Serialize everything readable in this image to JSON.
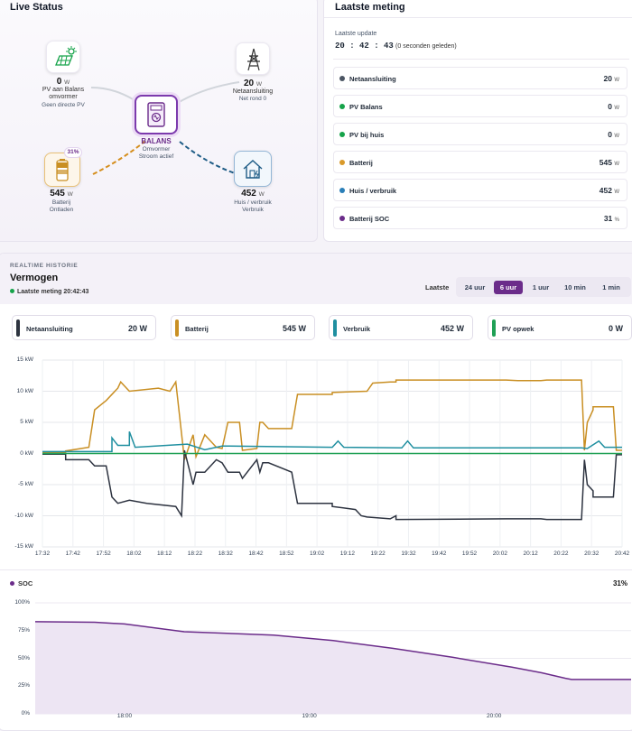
{
  "live": {
    "title": "Live Status",
    "pv": {
      "value": "0",
      "unit": "W",
      "label1": "PV aan Balans",
      "label2": "omvormer",
      "label3": "Geen directe PV"
    },
    "grid": {
      "value": "20",
      "unit": "W",
      "label1": "Netaansluiting",
      "label2": "Net rond 0"
    },
    "center": {
      "title": "BALANS",
      "label1": "Omvormer",
      "label2": "Stroom actief"
    },
    "battery": {
      "value": "545",
      "unit": "W",
      "badge": "31%",
      "label1": "Batterij",
      "label2": "Ontladen"
    },
    "house": {
      "value": "452",
      "unit": "W",
      "label1": "Huis / verbruik",
      "label2": "Verbruik"
    }
  },
  "meting": {
    "title": "Laatste meting",
    "update_label": "Laatste update",
    "time": "20 : 42 : 43",
    "ago": "(0 seconden geleden)",
    "rows": [
      {
        "label": "Netaansluiting",
        "value": "20",
        "unit": "W",
        "color": "#4b5563"
      },
      {
        "label": "PV Balans",
        "value": "0",
        "unit": "W",
        "color": "#16a34a"
      },
      {
        "label": "PV bij huis",
        "value": "0",
        "unit": "W",
        "color": "#16a34a"
      },
      {
        "label": "Batterij",
        "value": "545",
        "unit": "W",
        "color": "#d99a2b"
      },
      {
        "label": "Huis / verbruik",
        "value": "452",
        "unit": "W",
        "color": "#2a7fb8"
      },
      {
        "label": "Batterij SOC",
        "value": "31",
        "unit": "%",
        "color": "#6b2c8a"
      }
    ]
  },
  "history": {
    "overline": "REALTIME HISTORIE",
    "title": "Vermogen",
    "last": "Laatste meting 20:42:43",
    "tabs_label": "Laatste",
    "tabs": [
      "24 uur",
      "6 uur",
      "1 uur",
      "10 min",
      "1 min"
    ],
    "active_tab": "6 uur",
    "cards": [
      {
        "label": "Netaansluiting",
        "value": "20 W",
        "color": "#2d3340"
      },
      {
        "label": "Batterij",
        "value": "545 W",
        "color": "#c98f23"
      },
      {
        "label": "Verbruik",
        "value": "452 W",
        "color": "#1f8fa0"
      },
      {
        "label": "PV opwek",
        "value": "0 W",
        "color": "#1fa055"
      }
    ],
    "soc_label": "SOC",
    "soc_value": "31%"
  },
  "chart_data": [
    {
      "type": "line",
      "ylim": [
        -15,
        15
      ],
      "yticks": [
        "15 kW",
        "10 kW",
        "5 kW",
        "0 kW",
        "-5 kW",
        "-10 kW",
        "-15 kW"
      ],
      "xticks": [
        "17:32",
        "17:42",
        "17:52",
        "18:02",
        "18:12",
        "18:22",
        "18:32",
        "18:42",
        "18:52",
        "19:02",
        "19:12",
        "19:22",
        "19:32",
        "19:42",
        "19:52",
        "20:02",
        "20:12",
        "20:22",
        "20:32",
        "20:42"
      ],
      "grid": true,
      "series": [
        {
          "key": "batterij",
          "color": "#c98f23",
          "points": [
            [
              0,
              0.1
            ],
            [
              0.04,
              0.1
            ],
            [
              0.04,
              0.4
            ],
            [
              0.08,
              1
            ],
            [
              0.09,
              7
            ],
            [
              0.11,
              8.5
            ],
            [
              0.13,
              10.5
            ],
            [
              0.135,
              11.5
            ],
            [
              0.15,
              10
            ],
            [
              0.2,
              10.5
            ],
            [
              0.22,
              10
            ],
            [
              0.23,
              11.5
            ],
            [
              0.245,
              -1
            ],
            [
              0.26,
              3
            ],
            [
              0.265,
              -0.5
            ],
            [
              0.28,
              3
            ],
            [
              0.3,
              1
            ],
            [
              0.31,
              0.8
            ],
            [
              0.32,
              5
            ],
            [
              0.34,
              5
            ],
            [
              0.345,
              0.5
            ],
            [
              0.37,
              0.8
            ],
            [
              0.375,
              5
            ],
            [
              0.38,
              5
            ],
            [
              0.39,
              4
            ],
            [
              0.43,
              4
            ],
            [
              0.44,
              9.5
            ],
            [
              0.5,
              9.5
            ],
            [
              0.5,
              9.8
            ],
            [
              0.56,
              10
            ],
            [
              0.57,
              11.3
            ],
            [
              0.6,
              11.5
            ],
            [
              0.61,
              11.5
            ],
            [
              0.61,
              11.8
            ],
            [
              0.8,
              11.8
            ],
            [
              0.82,
              11.7
            ],
            [
              0.86,
              11.7
            ],
            [
              0.87,
              11.8
            ],
            [
              0.91,
              11.8
            ],
            [
              0.93,
              11.8
            ],
            [
              0.935,
              0.5
            ],
            [
              0.94,
              5
            ],
            [
              0.95,
              7
            ],
            [
              0.95,
              7.5
            ],
            [
              0.985,
              7.5
            ],
            [
              0.99,
              0.5
            ],
            [
              1,
              0.5
            ]
          ]
        },
        {
          "key": "verbruik",
          "color": "#1f8fa0",
          "points": [
            [
              0,
              0.3
            ],
            [
              0.12,
              0.3
            ],
            [
              0.12,
              2.5
            ],
            [
              0.13,
              1.3
            ],
            [
              0.15,
              1.3
            ],
            [
              0.15,
              3.5
            ],
            [
              0.16,
              1
            ],
            [
              0.25,
              1.5
            ],
            [
              0.28,
              0.6
            ],
            [
              0.3,
              1
            ],
            [
              0.31,
              1.2
            ],
            [
              0.5,
              1
            ],
            [
              0.51,
              2
            ],
            [
              0.52,
              1
            ],
            [
              0.62,
              0.9
            ],
            [
              0.63,
              2
            ],
            [
              0.64,
              0.9
            ],
            [
              0.93,
              0.9
            ],
            [
              0.94,
              0.8
            ],
            [
              0.96,
              2
            ],
            [
              0.97,
              1
            ],
            [
              1,
              1
            ]
          ]
        },
        {
          "key": "netaansluiting",
          "color": "#2d3340",
          "points": [
            [
              0,
              -0.1
            ],
            [
              0.04,
              -0.1
            ],
            [
              0.04,
              -1
            ],
            [
              0.08,
              -1
            ],
            [
              0.09,
              -2
            ],
            [
              0.11,
              -2
            ],
            [
              0.12,
              -7
            ],
            [
              0.13,
              -8
            ],
            [
              0.15,
              -7.5
            ],
            [
              0.18,
              -8
            ],
            [
              0.23,
              -8.5
            ],
            [
              0.24,
              -10
            ],
            [
              0.245,
              0.5
            ],
            [
              0.26,
              -5
            ],
            [
              0.265,
              -3
            ],
            [
              0.28,
              -3
            ],
            [
              0.3,
              -1
            ],
            [
              0.31,
              -1.5
            ],
            [
              0.32,
              -3
            ],
            [
              0.34,
              -3
            ],
            [
              0.345,
              -4
            ],
            [
              0.37,
              -1
            ],
            [
              0.375,
              -3
            ],
            [
              0.38,
              -1.5
            ],
            [
              0.39,
              -1.5
            ],
            [
              0.43,
              -3
            ],
            [
              0.44,
              -8
            ],
            [
              0.5,
              -8
            ],
            [
              0.5,
              -8.5
            ],
            [
              0.54,
              -9
            ],
            [
              0.55,
              -10
            ],
            [
              0.56,
              -10.2
            ],
            [
              0.6,
              -10.5
            ],
            [
              0.61,
              -10
            ],
            [
              0.61,
              -10.6
            ],
            [
              0.8,
              -10.5
            ],
            [
              0.82,
              -10.5
            ],
            [
              0.86,
              -10.5
            ],
            [
              0.87,
              -10.6
            ],
            [
              0.91,
              -10.6
            ],
            [
              0.93,
              -10.6
            ],
            [
              0.935,
              -1
            ],
            [
              0.94,
              -5
            ],
            [
              0.95,
              -6
            ],
            [
              0.95,
              -7
            ],
            [
              0.985,
              -7
            ],
            [
              0.99,
              -0.2
            ],
            [
              1,
              -0.2
            ]
          ]
        },
        {
          "key": "pv",
          "color": "#1fa055",
          "points": [
            [
              0,
              0
            ],
            [
              1,
              0
            ]
          ]
        }
      ]
    },
    {
      "type": "area",
      "ylim": [
        0,
        100
      ],
      "yticks": [
        "100%",
        "75%",
        "50%",
        "25%",
        "0%"
      ],
      "xticks": [
        "18:00",
        "19:00",
        "20:00"
      ],
      "series": [
        {
          "key": "soc",
          "color": "#6b2c8a",
          "points": [
            [
              0,
              83
            ],
            [
              0.1,
              82.5
            ],
            [
              0.15,
              81
            ],
            [
              0.25,
              74
            ],
            [
              0.4,
              71
            ],
            [
              0.5,
              66
            ],
            [
              0.6,
              59
            ],
            [
              0.7,
              51
            ],
            [
              0.8,
              42
            ],
            [
              0.85,
              37
            ],
            [
              0.89,
              32
            ],
            [
              0.9,
              31
            ],
            [
              1,
              31
            ]
          ]
        }
      ]
    }
  ]
}
